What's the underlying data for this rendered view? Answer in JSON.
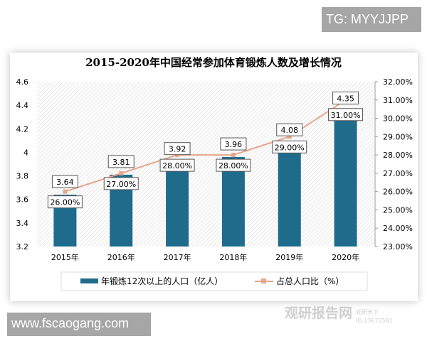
{
  "watermarks": {
    "top": "TG: MYYJJPP",
    "bottom": "www.fscaogang.com",
    "logo": "观研报告网",
    "logo_sub": "观研天下",
    "logo_id": "ID:13672581",
    "logo_url": "chinabaogao.com"
  },
  "colors": {
    "bar": "#1f6b8c",
    "line": "#e8a58a",
    "title": "#2a6478"
  },
  "chart_data": {
    "type": "bar+line",
    "title": "2015-2020年中国经常参加体育锻炼人数及增长情况",
    "categories": [
      "2015年",
      "2016年",
      "2017年",
      "2018年",
      "2019年",
      "2020年"
    ],
    "series": [
      {
        "name": "年锻炼12次以上的人口（亿人）",
        "type": "bar",
        "axis": "left",
        "values": [
          3.64,
          3.81,
          3.92,
          3.96,
          4.08,
          4.35
        ],
        "labels": [
          "3.64",
          "3.81",
          "3.92",
          "3.96",
          "4.08",
          "4.35"
        ]
      },
      {
        "name": "占总人口比（%）",
        "type": "line",
        "axis": "right",
        "values": [
          26,
          27,
          28,
          28,
          29,
          31
        ],
        "labels": [
          "26.00%",
          "27.00%",
          "28.00%",
          "28.00%",
          "29.00%",
          "31.00%"
        ]
      }
    ],
    "ylim": [
      3.2,
      4.6
    ],
    "yticks": [
      "3.2",
      "3.4",
      "3.6",
      "3.8",
      "4",
      "4.2",
      "4.4",
      "4.6"
    ],
    "y2lim": [
      23,
      32
    ],
    "y2ticks": [
      "23.00%",
      "24.00%",
      "25.00%",
      "26.00%",
      "27.00%",
      "28.00%",
      "29.00%",
      "30.00%",
      "31.00%",
      "32.00%"
    ],
    "legend": "bottom",
    "grid": false
  }
}
